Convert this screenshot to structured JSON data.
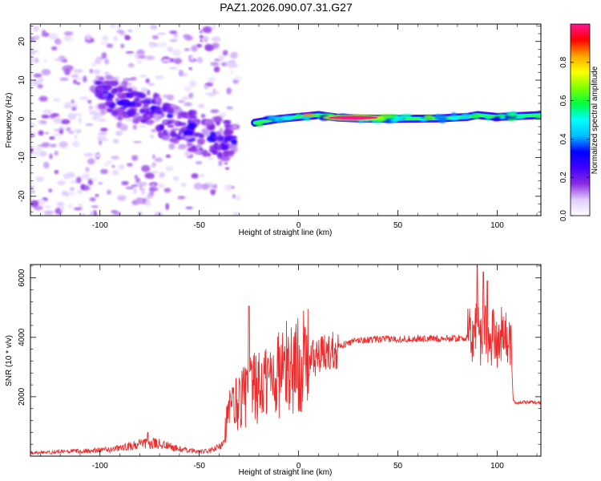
{
  "figure_title": "PAZ1.2026.090.07.31.G27",
  "chart_data": [
    {
      "type": "heatmap",
      "title": "PAZ1.2026.090.07.31.G27",
      "xlabel": "Height of straight line (km)",
      "ylabel": "Frequency (Hz)",
      "xlim": [
        -135,
        122
      ],
      "ylim": [
        -25,
        24.5
      ],
      "xticks": [
        -100,
        -50,
        0,
        50,
        100
      ],
      "xtick_labels": [
        "-100",
        "-50",
        "0",
        "50",
        "100"
      ],
      "yticks": [
        -20,
        -10,
        0,
        10,
        20
      ],
      "ytick_labels": [
        "-20",
        "-10",
        "0",
        "10",
        "20"
      ],
      "colorbar": {
        "label": "Normalized spectral amplitude",
        "range": [
          0,
          1
        ],
        "ticks": [
          0.0,
          0.2,
          0.4,
          0.6,
          0.8
        ],
        "tick_labels": [
          "0.0",
          "0.2",
          "0.4",
          "0.6",
          "0.8"
        ],
        "colormap": [
          "#ffffff",
          "#e0ccff",
          "#8a2be2",
          "#4000ff",
          "#0000ff",
          "#00bfff",
          "#00ffff",
          "#00ff40",
          "#80ff00",
          "#ffff00",
          "#ffa500",
          "#ff0000",
          "#ff1493"
        ]
      },
      "features": [
        {
          "name": "scattered weak blobs",
          "x_range": [
            -135,
            -30
          ],
          "freq_range": [
            -25,
            24
          ],
          "amplitude": 0.05
        },
        {
          "name": "descending diffuse trace",
          "x": [
            -102,
            -90,
            -80,
            -70,
            -60,
            -50,
            -40,
            -32
          ],
          "freq": [
            7,
            5,
            3,
            1,
            -2,
            -4,
            -5,
            -6
          ],
          "amplitude": 0.22
        },
        {
          "name": "main signal band",
          "x": [
            -22,
            -10,
            0,
            10,
            20,
            30,
            50,
            70,
            85,
            90,
            100,
            122
          ],
          "freq": [
            -1,
            0,
            0.5,
            1,
            0.3,
            0.1,
            0,
            0.1,
            0.5,
            1,
            0.5,
            1
          ],
          "amplitude": 0.55
        },
        {
          "name": "peak amplitude",
          "x_range": [
            15,
            40
          ],
          "freq": 0.3,
          "amplitude": 1.0
        }
      ]
    },
    {
      "type": "line",
      "xlabel": "Height of straight line (km)",
      "ylabel": "SNR (10 * v/v)",
      "xlim": [
        -135,
        122
      ],
      "ylim": [
        0,
        6450
      ],
      "xticks": [
        -100,
        -50,
        0,
        50,
        100
      ],
      "xtick_labels": [
        "-100",
        "-50",
        "0",
        "50",
        "100"
      ],
      "yticks": [
        2000,
        4000,
        6000
      ],
      "ytick_labels": [
        "2000",
        "4000",
        "6000"
      ],
      "series": [
        {
          "name": "SNR",
          "color": "#ee2b2b",
          "x": [
            -135,
            -120,
            -100,
            -90,
            -80,
            -70,
            -60,
            -50,
            -45,
            -40,
            -38,
            -35,
            -30,
            -25,
            -20,
            -15,
            -10,
            -5,
            0,
            5,
            10,
            15,
            20,
            25,
            30,
            40,
            50,
            60,
            70,
            80,
            85,
            88,
            90,
            92,
            94,
            96,
            98,
            100,
            102,
            104,
            106,
            107,
            108,
            110,
            115,
            122
          ],
          "y": [
            100,
            150,
            200,
            260,
            400,
            420,
            230,
            150,
            170,
            300,
            600,
            1500,
            1900,
            2200,
            2300,
            2600,
            2800,
            3000,
            3100,
            3250,
            3350,
            3500,
            3700,
            3800,
            3900,
            3930,
            3950,
            3950,
            3960,
            3970,
            3980,
            4050,
            4700,
            3700,
            4800,
            3500,
            4300,
            3900,
            4200,
            3950,
            4050,
            3800,
            1850,
            1800,
            1820,
            1800
          ],
          "spikes": [
            {
              "x": -76,
              "y": 800
            },
            {
              "x": -25,
              "y": 5050
            },
            {
              "x": 90,
              "y": 6400
            },
            {
              "x": 93,
              "y": 6200
            },
            {
              "x": 95,
              "y": 5900
            }
          ]
        }
      ]
    }
  ]
}
